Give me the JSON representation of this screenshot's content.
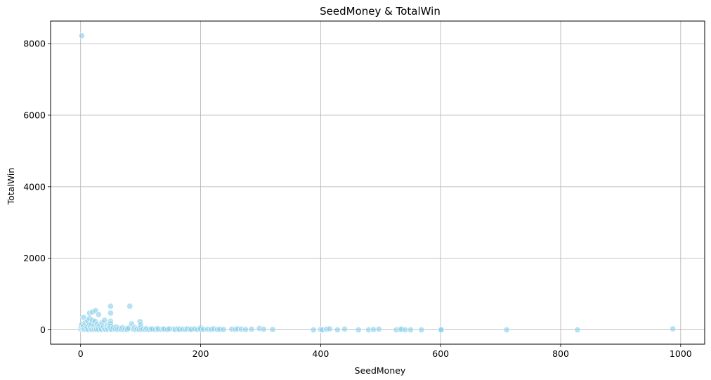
{
  "chart_data": {
    "type": "scatter",
    "title": "SeedMoney & TotalWin",
    "xlabel": "SeedMoney",
    "ylabel": "TotalWin",
    "xlim": [
      -50,
      1040
    ],
    "ylim": [
      -400,
      8630
    ],
    "xticks": [
      0,
      200,
      400,
      600,
      800,
      1000
    ],
    "yticks": [
      0,
      2000,
      4000,
      6000,
      8000
    ],
    "grid": true,
    "marker_color": "#87CEEB",
    "points": [
      [
        2,
        8220
      ],
      [
        0,
        30
      ],
      [
        1,
        80
      ],
      [
        2,
        150
      ],
      [
        3,
        60
      ],
      [
        4,
        20
      ],
      [
        5,
        350
      ],
      [
        5,
        110
      ],
      [
        6,
        10
      ],
      [
        7,
        40
      ],
      [
        8,
        200
      ],
      [
        9,
        90
      ],
      [
        10,
        20
      ],
      [
        11,
        60
      ],
      [
        12,
        250
      ],
      [
        13,
        10
      ],
      [
        14,
        130
      ],
      [
        15,
        470
      ],
      [
        15,
        320
      ],
      [
        16,
        80
      ],
      [
        17,
        30
      ],
      [
        18,
        170
      ],
      [
        19,
        10
      ],
      [
        20,
        500
      ],
      [
        20,
        270
      ],
      [
        21,
        60
      ],
      [
        22,
        120
      ],
      [
        23,
        20
      ],
      [
        24,
        240
      ],
      [
        25,
        540
      ],
      [
        25,
        90
      ],
      [
        26,
        40
      ],
      [
        27,
        10
      ],
      [
        28,
        160
      ],
      [
        29,
        70
      ],
      [
        30,
        430
      ],
      [
        30,
        20
      ],
      [
        32,
        110
      ],
      [
        34,
        50
      ],
      [
        35,
        10
      ],
      [
        36,
        200
      ],
      [
        38,
        80
      ],
      [
        40,
        30
      ],
      [
        40,
        270
      ],
      [
        42,
        10
      ],
      [
        44,
        60
      ],
      [
        45,
        130
      ],
      [
        46,
        20
      ],
      [
        48,
        90
      ],
      [
        50,
        660
      ],
      [
        50,
        470
      ],
      [
        50,
        240
      ],
      [
        50,
        170
      ],
      [
        50,
        100
      ],
      [
        50,
        40
      ],
      [
        52,
        10
      ],
      [
        55,
        60
      ],
      [
        58,
        20
      ],
      [
        60,
        80
      ],
      [
        62,
        10
      ],
      [
        65,
        40
      ],
      [
        68,
        20
      ],
      [
        70,
        60
      ],
      [
        72,
        10
      ],
      [
        75,
        30
      ],
      [
        78,
        10
      ],
      [
        80,
        50
      ],
      [
        82,
        660
      ],
      [
        85,
        170
      ],
      [
        88,
        20
      ],
      [
        90,
        60
      ],
      [
        92,
        10
      ],
      [
        95,
        30
      ],
      [
        98,
        10
      ],
      [
        99,
        230
      ],
      [
        100,
        140
      ],
      [
        100,
        60
      ],
      [
        102,
        10
      ],
      [
        105,
        30
      ],
      [
        108,
        10
      ],
      [
        110,
        40
      ],
      [
        112,
        20
      ],
      [
        115,
        10
      ],
      [
        118,
        30
      ],
      [
        120,
        20
      ],
      [
        125,
        10
      ],
      [
        128,
        40
      ],
      [
        130,
        20
      ],
      [
        135,
        10
      ],
      [
        138,
        30
      ],
      [
        140,
        20
      ],
      [
        145,
        10
      ],
      [
        148,
        30
      ],
      [
        155,
        20
      ],
      [
        158,
        10
      ],
      [
        162,
        30
      ],
      [
        165,
        10
      ],
      [
        170,
        20
      ],
      [
        175,
        10
      ],
      [
        178,
        30
      ],
      [
        182,
        20
      ],
      [
        185,
        10
      ],
      [
        190,
        30
      ],
      [
        195,
        10
      ],
      [
        200,
        60
      ],
      [
        200,
        20
      ],
      [
        205,
        10
      ],
      [
        212,
        20
      ],
      [
        218,
        10
      ],
      [
        222,
        30
      ],
      [
        228,
        10
      ],
      [
        232,
        20
      ],
      [
        238,
        10
      ],
      [
        252,
        20
      ],
      [
        258,
        10
      ],
      [
        262,
        30
      ],
      [
        268,
        20
      ],
      [
        275,
        10
      ],
      [
        285,
        20
      ],
      [
        298,
        40
      ],
      [
        305,
        20
      ],
      [
        320,
        10
      ],
      [
        388,
        0
      ],
      [
        400,
        10
      ],
      [
        403,
        0
      ],
      [
        410,
        20
      ],
      [
        415,
        30
      ],
      [
        428,
        0
      ],
      [
        440,
        20
      ],
      [
        463,
        0
      ],
      [
        480,
        0
      ],
      [
        488,
        10
      ],
      [
        497,
        20
      ],
      [
        526,
        0
      ],
      [
        532,
        10
      ],
      [
        535,
        20
      ],
      [
        541,
        0
      ],
      [
        550,
        0
      ],
      [
        568,
        0
      ],
      [
        600,
        0
      ],
      [
        601,
        0
      ],
      [
        710,
        0
      ],
      [
        828,
        0
      ],
      [
        987,
        30
      ]
    ]
  }
}
